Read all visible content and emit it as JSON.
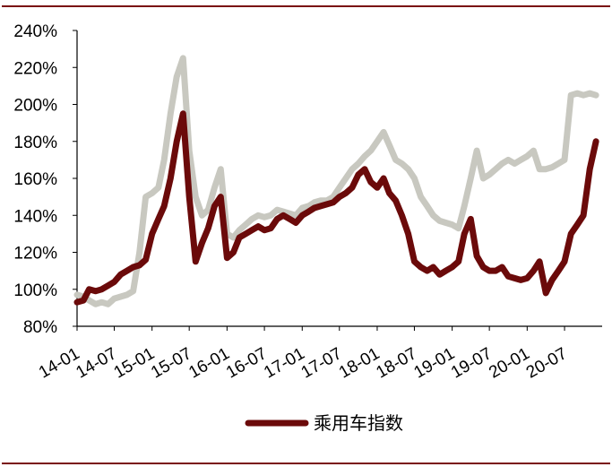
{
  "chart_data": {
    "type": "line",
    "title": "",
    "xlabel": "",
    "ylabel": "",
    "ylim": [
      80,
      240
    ],
    "y_ticks": [
      80,
      100,
      120,
      140,
      160,
      180,
      200,
      220,
      240
    ],
    "y_tick_labels": [
      "80%",
      "100%",
      "120%",
      "140%",
      "160%",
      "180%",
      "200%",
      "220%",
      "240%"
    ],
    "x_ticks": [
      "14-01",
      "14-07",
      "15-01",
      "15-07",
      "16-01",
      "16-07",
      "17-01",
      "17-07",
      "18-01",
      "18-07",
      "19-01",
      "19-07",
      "20-01",
      "20-07"
    ],
    "grid": false,
    "legend_placement": "bottom",
    "series": [
      {
        "name": "",
        "color": "#c8c8c0",
        "x": [
          "2014-01",
          "2014-02",
          "2014-03",
          "2014-04",
          "2014-05",
          "2014-06",
          "2014-07",
          "2014-08",
          "2014-09",
          "2014-10",
          "2014-11",
          "2014-12",
          "2015-01",
          "2015-02",
          "2015-03",
          "2015-04",
          "2015-05",
          "2015-06",
          "2015-07",
          "2015-08",
          "2015-09",
          "2015-10",
          "2015-11",
          "2015-12",
          "2016-01",
          "2016-02",
          "2016-03",
          "2016-04",
          "2016-05",
          "2016-06",
          "2016-07",
          "2016-08",
          "2016-09",
          "2016-10",
          "2016-11",
          "2016-12",
          "2017-01",
          "2017-02",
          "2017-03",
          "2017-04",
          "2017-05",
          "2017-06",
          "2017-07",
          "2017-08",
          "2017-09",
          "2017-10",
          "2017-11",
          "2017-12",
          "2018-01",
          "2018-02",
          "2018-03",
          "2018-04",
          "2018-05",
          "2018-06",
          "2018-07",
          "2018-08",
          "2018-09",
          "2018-10",
          "2018-11",
          "2018-12",
          "2019-01",
          "2019-02",
          "2019-03",
          "2019-04",
          "2019-05",
          "2019-06",
          "2019-07",
          "2019-08",
          "2019-09",
          "2019-10",
          "2019-11",
          "2019-12",
          "2020-01",
          "2020-02",
          "2020-03",
          "2020-04",
          "2020-05",
          "2020-06",
          "2020-07",
          "2020-08",
          "2020-09",
          "2020-10",
          "2020-11",
          "2020-12"
        ],
        "values": [
          97,
          96,
          94,
          92,
          93,
          92,
          95,
          96,
          97,
          99,
          120,
          150,
          152,
          155,
          170,
          195,
          215,
          225,
          175,
          150,
          140,
          143,
          155,
          165,
          130,
          128,
          132,
          135,
          138,
          140,
          139,
          140,
          143,
          142,
          141,
          140,
          144,
          145,
          147,
          148,
          148,
          150,
          155,
          160,
          165,
          168,
          172,
          175,
          180,
          185,
          178,
          170,
          168,
          165,
          160,
          150,
          145,
          140,
          137,
          136,
          135,
          133,
          145,
          160,
          175,
          160,
          162,
          165,
          168,
          170,
          168,
          170,
          172,
          175,
          165,
          165,
          166,
          168,
          170,
          205,
          206,
          205,
          206,
          205
        ]
      },
      {
        "name": "乘用车指数",
        "color": "#6b0a0a",
        "x": [
          "2014-01",
          "2014-02",
          "2014-03",
          "2014-04",
          "2014-05",
          "2014-06",
          "2014-07",
          "2014-08",
          "2014-09",
          "2014-10",
          "2014-11",
          "2014-12",
          "2015-01",
          "2015-02",
          "2015-03",
          "2015-04",
          "2015-05",
          "2015-06",
          "2015-07",
          "2015-08",
          "2015-09",
          "2015-10",
          "2015-11",
          "2015-12",
          "2016-01",
          "2016-02",
          "2016-03",
          "2016-04",
          "2016-05",
          "2016-06",
          "2016-07",
          "2016-08",
          "2016-09",
          "2016-10",
          "2016-11",
          "2016-12",
          "2017-01",
          "2017-02",
          "2017-03",
          "2017-04",
          "2017-05",
          "2017-06",
          "2017-07",
          "2017-08",
          "2017-09",
          "2017-10",
          "2017-11",
          "2017-12",
          "2018-01",
          "2018-02",
          "2018-03",
          "2018-04",
          "2018-05",
          "2018-06",
          "2018-07",
          "2018-08",
          "2018-09",
          "2018-10",
          "2018-11",
          "2018-12",
          "2019-01",
          "2019-02",
          "2019-03",
          "2019-04",
          "2019-05",
          "2019-06",
          "2019-07",
          "2019-08",
          "2019-09",
          "2019-10",
          "2019-11",
          "2019-12",
          "2020-01",
          "2020-02",
          "2020-03",
          "2020-04",
          "2020-05",
          "2020-06",
          "2020-07",
          "2020-08",
          "2020-09",
          "2020-10",
          "2020-11",
          "2020-12"
        ],
        "values": [
          93,
          94,
          100,
          99,
          100,
          102,
          104,
          108,
          110,
          112,
          113,
          116,
          130,
          138,
          145,
          160,
          180,
          195,
          150,
          115,
          125,
          133,
          145,
          150,
          117,
          120,
          128,
          130,
          132,
          134,
          132,
          133,
          138,
          140,
          138,
          136,
          140,
          142,
          144,
          145,
          146,
          147,
          150,
          152,
          155,
          162,
          165,
          158,
          155,
          160,
          152,
          148,
          140,
          130,
          115,
          112,
          110,
          112,
          108,
          110,
          112,
          115,
          130,
          138,
          118,
          112,
          110,
          110,
          112,
          107,
          106,
          105,
          106,
          110,
          115,
          98,
          105,
          110,
          115,
          130,
          135,
          140,
          165,
          180
        ]
      }
    ]
  }
}
